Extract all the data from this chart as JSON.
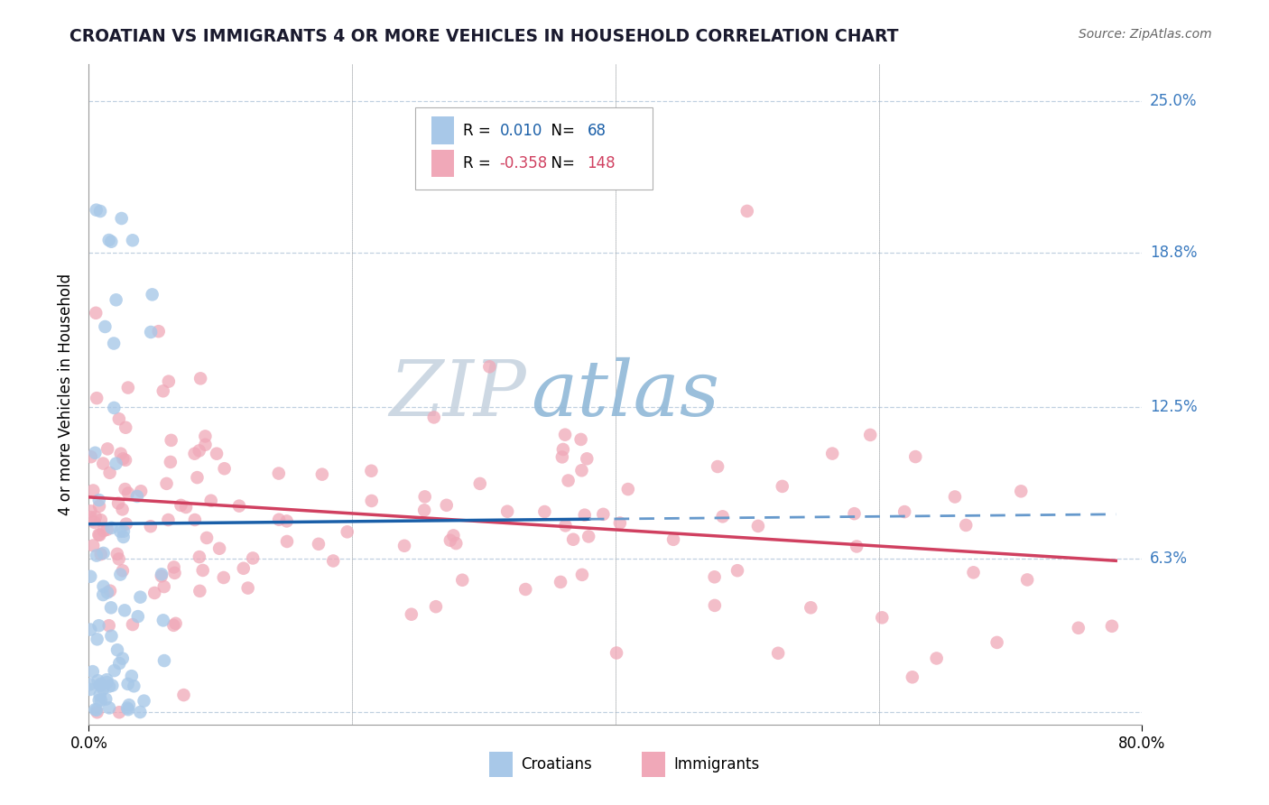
{
  "title": "CROATIAN VS IMMIGRANTS 4 OR MORE VEHICLES IN HOUSEHOLD CORRELATION CHART",
  "source": "Source: ZipAtlas.com",
  "ylabel": "4 or more Vehicles in Household",
  "xlim": [
    0.0,
    0.8
  ],
  "ylim": [
    -0.005,
    0.265
  ],
  "yticks": [
    0.0,
    0.063,
    0.125,
    0.188,
    0.25
  ],
  "ytick_labels": [
    "0.0%",
    "6.3%",
    "12.5%",
    "18.8%",
    "25.0%"
  ],
  "xtick_labels": [
    "0.0%",
    "80.0%"
  ],
  "xticks": [
    0.0,
    0.8
  ],
  "legend_r_croatian": "0.010",
  "legend_n_croatian": "68",
  "legend_r_immigrant": "-0.358",
  "legend_n_immigrant": "148",
  "croatian_color": "#a8c8e8",
  "immigrant_color": "#f0a8b8",
  "trendline_croatian_solid_color": "#1a5fa8",
  "trendline_croatian_dash_color": "#6699cc",
  "trendline_immigrant_color": "#d04060",
  "watermark_zip_color": "#c8d4e0",
  "watermark_atlas_color": "#90b8d8",
  "background_color": "#ffffff",
  "grid_color": "#c0d0e0",
  "title_color": "#1a1a2e",
  "source_color": "#666666",
  "right_label_color": "#3a7abf",
  "cr_trend_x0": 0.0,
  "cr_trend_y0": 0.077,
  "cr_trend_x1": 0.38,
  "cr_trend_y1": 0.079,
  "cr_trend_dash_x0": 0.38,
  "cr_trend_dash_y0": 0.079,
  "cr_trend_dash_x1": 0.78,
  "cr_trend_dash_y1": 0.081,
  "im_trend_x0": 0.0,
  "im_trend_y0": 0.088,
  "im_trend_x1": 0.78,
  "im_trend_y1": 0.062
}
